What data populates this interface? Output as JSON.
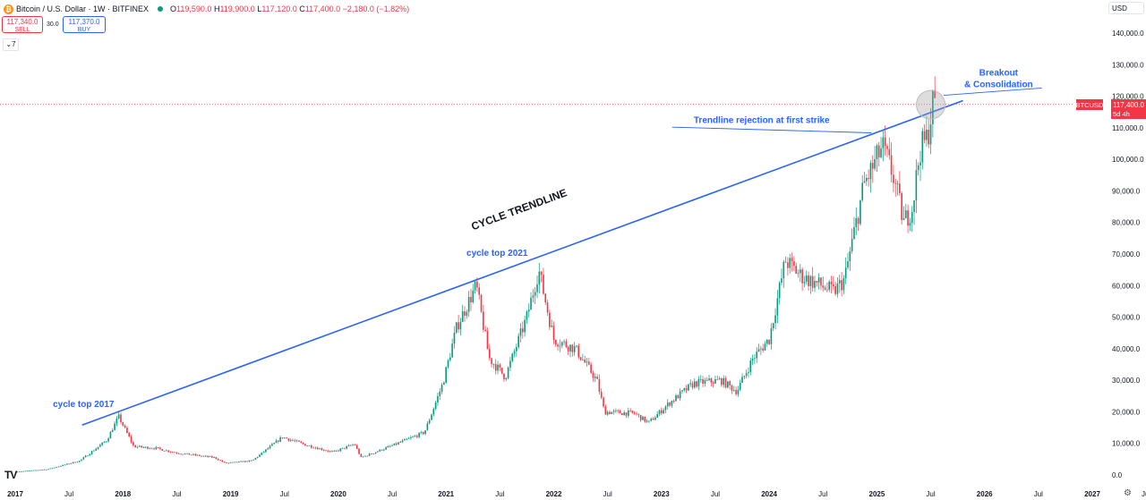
{
  "header": {
    "coin_icon": "bitcoin-icon",
    "symbol": "Bitcoin / U.S. Dollar · 1W · BITFINEX",
    "ohlc": [
      {
        "k": "O",
        "v": "119,590.0"
      },
      {
        "k": "H",
        "v": "119,900.0"
      },
      {
        "k": "L",
        "v": "117,120.0"
      },
      {
        "k": "C",
        "v": "117,400.0"
      },
      {
        "k": "",
        "v": "−2,180.0 (−1.82%)"
      }
    ]
  },
  "trade": {
    "sell_price": "117,340.0",
    "sell_label": "SELL",
    "spread": "30.0",
    "buy_price": "117,370.0",
    "buy_label": "BUY"
  },
  "indicators_toggle": "7",
  "currency": "USD",
  "price_tag": {
    "symbol": "BTCUSD",
    "price": "117,400.0",
    "countdown": "5d 4h"
  },
  "colors": {
    "up": "#089981",
    "down": "#f23645",
    "annotation": "#2962ff",
    "text": "#131722"
  },
  "chart_data": {
    "type": "candlestick",
    "timeframe": "1W",
    "y_axis": {
      "range": [
        0,
        150000
      ],
      "ticks": [
        0,
        10000,
        20000,
        30000,
        40000,
        50000,
        60000,
        70000,
        80000,
        90000,
        100000,
        110000,
        120000,
        130000,
        140000
      ],
      "tick_labels": [
        "0.0",
        "10,000.0",
        "20,000.0",
        "30,000.0",
        "40,000.0",
        "50,000.0",
        "60,000.0",
        "70,000.0",
        "80,000.0",
        "90,000.0",
        "100,000.0",
        "110,000.0",
        "120,000.0",
        "130,000.0",
        "140,000.0"
      ]
    },
    "x_axis": {
      "range": [
        2017.0,
        2027.6
      ],
      "ticks": [
        {
          "t": 2017.0,
          "label": "2017"
        },
        {
          "t": 2017.5,
          "label": "Jul"
        },
        {
          "t": 2018.0,
          "label": "2018"
        },
        {
          "t": 2018.5,
          "label": "Jul"
        },
        {
          "t": 2019.0,
          "label": "2019"
        },
        {
          "t": 2019.5,
          "label": "Jul"
        },
        {
          "t": 2020.0,
          "label": "2020"
        },
        {
          "t": 2020.5,
          "label": "Jul"
        },
        {
          "t": 2021.0,
          "label": "2021"
        },
        {
          "t": 2021.5,
          "label": "Jul"
        },
        {
          "t": 2022.0,
          "label": "2022"
        },
        {
          "t": 2022.5,
          "label": "Jul"
        },
        {
          "t": 2023.0,
          "label": "2023"
        },
        {
          "t": 2023.5,
          "label": "Jul"
        },
        {
          "t": 2024.0,
          "label": "2024"
        },
        {
          "t": 2024.5,
          "label": "Jul"
        },
        {
          "t": 2025.0,
          "label": "2025"
        },
        {
          "t": 2025.5,
          "label": "Jul"
        },
        {
          "t": 2026.0,
          "label": "2026"
        },
        {
          "t": 2026.5,
          "label": "Jul"
        },
        {
          "t": 2027.0,
          "label": "2027"
        },
        {
          "t": 2027.5,
          "label": "Jul"
        }
      ]
    },
    "price_keypoints": [
      [
        2017.0,
        1000
      ],
      [
        2017.3,
        1800
      ],
      [
        2017.6,
        4500
      ],
      [
        2017.85,
        11000
      ],
      [
        2017.96,
        18500
      ],
      [
        2018.1,
        9000
      ],
      [
        2018.3,
        8500
      ],
      [
        2018.5,
        7000
      ],
      [
        2018.85,
        5500
      ],
      [
        2018.95,
        3700
      ],
      [
        2019.2,
        4500
      ],
      [
        2019.48,
        12000
      ],
      [
        2019.7,
        9500
      ],
      [
        2019.95,
        7200
      ],
      [
        2020.15,
        9800
      ],
      [
        2020.21,
        5500
      ],
      [
        2020.5,
        9300
      ],
      [
        2020.8,
        13500
      ],
      [
        2020.97,
        29000
      ],
      [
        2021.1,
        47000
      ],
      [
        2021.28,
        60000
      ],
      [
        2021.4,
        37000
      ],
      [
        2021.55,
        31000
      ],
      [
        2021.75,
        50000
      ],
      [
        2021.86,
        65000
      ],
      [
        2022.0,
        43000
      ],
      [
        2022.2,
        40000
      ],
      [
        2022.4,
        30000
      ],
      [
        2022.47,
        20000
      ],
      [
        2022.75,
        19500
      ],
      [
        2022.88,
        16500
      ],
      [
        2023.08,
        23000
      ],
      [
        2023.3,
        29000
      ],
      [
        2023.55,
        30000
      ],
      [
        2023.7,
        26500
      ],
      [
        2023.85,
        37000
      ],
      [
        2024.0,
        43000
      ],
      [
        2024.15,
        68000
      ],
      [
        2024.3,
        63000
      ],
      [
        2024.6,
        58000
      ],
      [
        2024.7,
        62000
      ],
      [
        2024.88,
        92000
      ],
      [
        2024.97,
        98000
      ],
      [
        2025.05,
        104000
      ],
      [
        2025.15,
        95000
      ],
      [
        2025.25,
        80000
      ],
      [
        2025.33,
        85000
      ],
      [
        2025.4,
        103000
      ],
      [
        2025.47,
        107000
      ],
      [
        2025.52,
        118000
      ],
      [
        2025.55,
        117400
      ]
    ],
    "horizontal_line": {
      "y": 117400,
      "style": "dotted"
    },
    "annotations": {
      "trendline": {
        "from": [
          2017.62,
          15800
        ],
        "to": [
          2025.8,
          118600
        ],
        "label": "CYCLE TRENDLINE"
      },
      "cycle_top_2017": "cycle top 2017",
      "cycle_top_2021": "cycle top 2021",
      "rejection": "Trendline rejection at first strike",
      "breakout": "Breakout",
      "consolidation": "& Consolidation"
    }
  }
}
